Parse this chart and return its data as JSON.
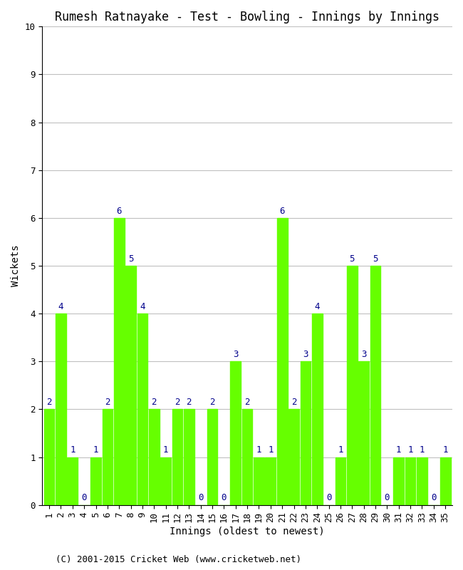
{
  "title": "Rumesh Ratnayake - Test - Bowling - Innings by Innings",
  "xlabel": "Innings (oldest to newest)",
  "ylabel": "Wickets",
  "innings": [
    1,
    2,
    3,
    4,
    5,
    6,
    7,
    8,
    9,
    10,
    11,
    12,
    13,
    14,
    15,
    16,
    17,
    18,
    19,
    20,
    21,
    22,
    23,
    24,
    25,
    26,
    27,
    28,
    29,
    30,
    31,
    32,
    33,
    34,
    35
  ],
  "wickets": [
    2,
    4,
    1,
    0,
    1,
    2,
    6,
    5,
    4,
    2,
    1,
    2,
    2,
    0,
    2,
    0,
    3,
    2,
    1,
    1,
    6,
    2,
    3,
    4,
    0,
    1,
    5,
    3,
    5,
    0,
    1,
    1,
    1,
    0,
    1
  ],
  "bar_color": "#66ff00",
  "label_color": "#00008b",
  "background_color": "#ffffff",
  "ylim": [
    0,
    10
  ],
  "yticks": [
    0,
    1,
    2,
    3,
    4,
    5,
    6,
    7,
    8,
    9,
    10
  ],
  "grid_color": "#c0c0c0",
  "title_fontsize": 12,
  "axis_label_fontsize": 10,
  "tick_fontsize": 9,
  "bar_label_fontsize": 9,
  "footer": "(C) 2001-2015 Cricket Web (www.cricketweb.net)"
}
